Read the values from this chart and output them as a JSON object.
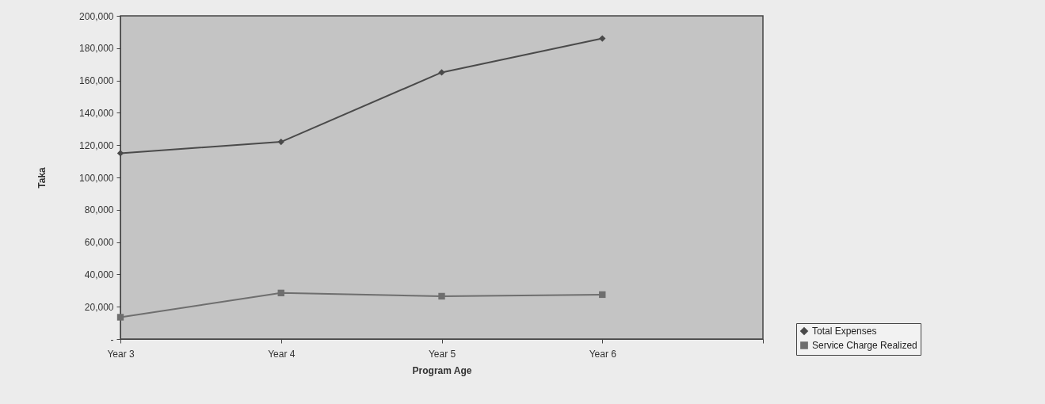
{
  "chart_data": {
    "type": "line",
    "xlabel": "Program Age",
    "ylabel": "Taka",
    "categories": [
      "Year 3",
      "Year 4",
      "Year 5",
      "Year 6",
      null
    ],
    "series": [
      {
        "name": "Total Expenses",
        "color": "#4a4a4a",
        "marker": "diamond",
        "values": [
          115000,
          122000,
          165000,
          186000,
          null
        ]
      },
      {
        "name": "Service Charge Realized",
        "color": "#6e6e6e",
        "marker": "square",
        "values": [
          13500,
          28500,
          26500,
          27500,
          null
        ]
      }
    ],
    "ylim": [
      0,
      200000
    ],
    "yticks": [
      {
        "value": 0,
        "label": "-"
      },
      {
        "value": 20000,
        "label": "20,000"
      },
      {
        "value": 40000,
        "label": "40,000"
      },
      {
        "value": 60000,
        "label": "60,000"
      },
      {
        "value": 80000,
        "label": "80,000"
      },
      {
        "value": 100000,
        "label": "100,000"
      },
      {
        "value": 120000,
        "label": "120,000"
      },
      {
        "value": 140000,
        "label": "140,000"
      },
      {
        "value": 160000,
        "label": "160,000"
      },
      {
        "value": 180000,
        "label": "180,000"
      },
      {
        "value": 200000,
        "label": "200,000"
      }
    ],
    "legend": "right"
  }
}
